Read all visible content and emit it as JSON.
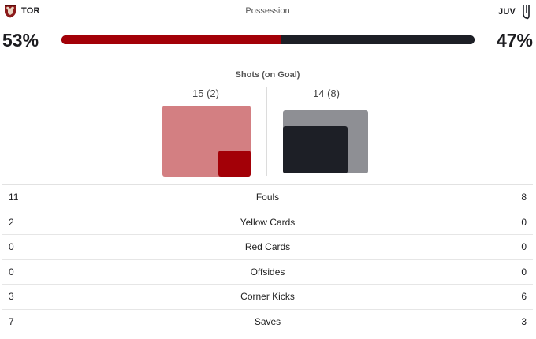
{
  "home": {
    "abbr": "TOR",
    "possession_pct": "53%",
    "possession": 53,
    "shots": "15 (2)",
    "shots_total": 15,
    "shots_on_goal": 2,
    "color": "#a30007",
    "light_color": "#d37f82",
    "logo_icon": "torino-bull-crest-icon"
  },
  "away": {
    "abbr": "JUV",
    "possession_pct": "47%",
    "possession": 47,
    "shots": "14 (8)",
    "shots_total": 14,
    "shots_on_goal": 8,
    "color": "#1d1f26",
    "light_color": "#8e8f94",
    "logo_icon": "juventus-j-logo-icon"
  },
  "possession": {
    "title": "Possession"
  },
  "shots": {
    "title": "Shots (on Goal)"
  },
  "stats": [
    {
      "home": "11",
      "label": "Fouls",
      "away": "8"
    },
    {
      "home": "2",
      "label": "Yellow Cards",
      "away": "0"
    },
    {
      "home": "0",
      "label": "Red Cards",
      "away": "0"
    },
    {
      "home": "0",
      "label": "Offsides",
      "away": "0"
    },
    {
      "home": "3",
      "label": "Corner Kicks",
      "away": "6"
    },
    {
      "home": "7",
      "label": "Saves",
      "away": "3"
    }
  ]
}
